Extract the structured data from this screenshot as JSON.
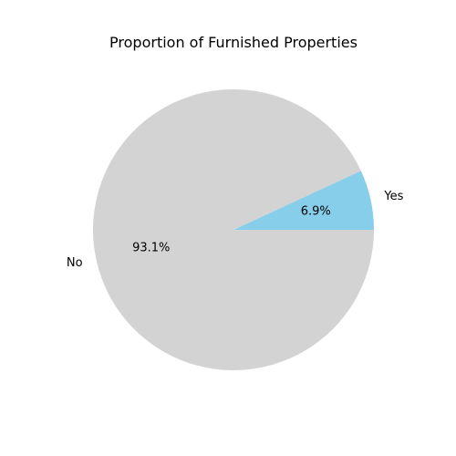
{
  "chart_data": {
    "type": "pie",
    "title": "Proportion of Furnished Properties",
    "slices": [
      {
        "label": "Yes",
        "value": 6.9,
        "pct_label": "6.9%",
        "color": "#87ceeb"
      },
      {
        "label": "No",
        "value": 93.1,
        "pct_label": "93.1%",
        "color": "#d3d3d3"
      }
    ],
    "start_angle_deg": 0,
    "direction": "counterclockwise"
  }
}
